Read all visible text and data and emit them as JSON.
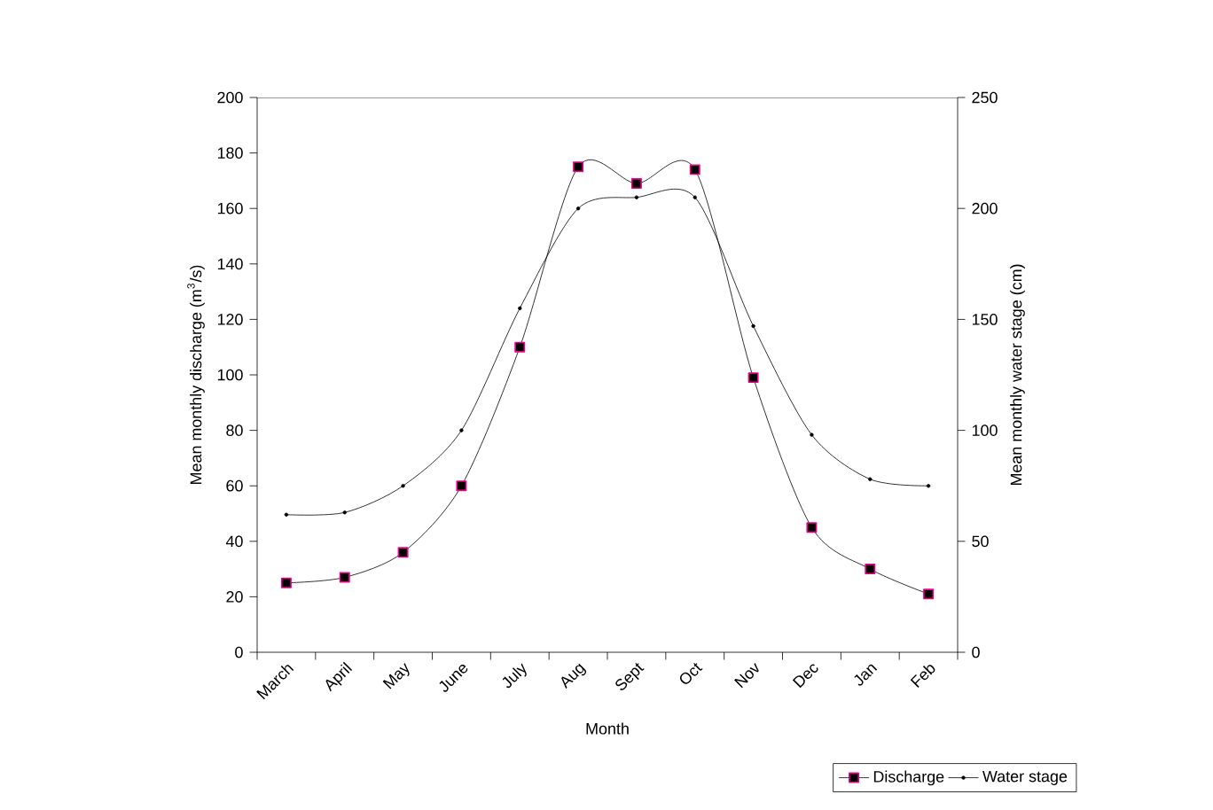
{
  "chart_data": {
    "type": "line",
    "xlabel": "Month",
    "ylabel": "Mean monthly discharge (m$^{3}$/s)",
    "y2label": "Mean monthly water stage (cm)",
    "categories": [
      "March",
      "April",
      "May",
      "June",
      "July",
      "Aug",
      "Sept",
      "Oct",
      "Nov",
      "Dec",
      "Jan",
      "Feb"
    ],
    "series": [
      {
        "name": "Discharge",
        "color": "#000000",
        "marker": "square",
        "values": [
          25,
          27,
          36,
          60,
          110,
          175,
          169,
          174,
          99,
          45,
          30,
          21
        ]
      },
      {
        "name": "Water stage",
        "color": "#000000",
        "marker": "circle",
        "axis": "y2",
        "values": [
          62,
          63,
          75,
          100,
          155,
          200,
          205,
          205,
          147,
          98,
          78,
          75
        ]
      }
    ],
    "ylim": [
      0,
      200
    ],
    "yticks": [
      0,
      20,
      40,
      60,
      80,
      100,
      120,
      140,
      160,
      180,
      200
    ],
    "y2lim": [
      0,
      250
    ],
    "y2ticks": [
      0,
      50,
      100,
      150,
      200,
      250
    ],
    "grid": false,
    "legend": "bottom right"
  }
}
